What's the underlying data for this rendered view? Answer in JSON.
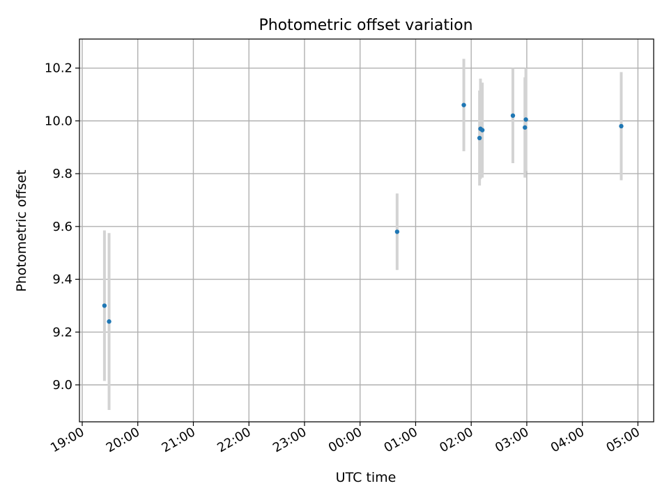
{
  "chart_data": {
    "type": "scatter",
    "title": "Photometric offset variation",
    "xlabel": "UTC time",
    "ylabel": "Photometric offset",
    "x_tick_labels": [
      "19:00",
      "20:00",
      "21:00",
      "22:00",
      "23:00",
      "00:00",
      "01:00",
      "02:00",
      "03:00",
      "04:00",
      "05:00"
    ],
    "x_ticks_time": [
      "19:00",
      "20:00",
      "21:00",
      "22:00",
      "23:00",
      "00:00",
      "01:00",
      "02:00",
      "03:00",
      "04:00",
      "05:00"
    ],
    "xlim": [
      "18:57",
      "05:17"
    ],
    "y_ticks": [
      9.0,
      9.2,
      9.4,
      9.6,
      9.8,
      10.0,
      10.2
    ],
    "y_tick_labels": [
      "9.0",
      "9.2",
      "9.4",
      "9.6",
      "9.8",
      "10.0",
      "10.2"
    ],
    "ylim": [
      8.86,
      10.31
    ],
    "grid": true,
    "legend": null,
    "colors": {
      "point": "#1f77b4",
      "errorbar": "#d3d3d3",
      "grid": "#b0b0b0",
      "axes": "#000000"
    },
    "points": [
      {
        "time": "19:24",
        "y": 9.3,
        "err": 0.285
      },
      {
        "time": "19:29",
        "y": 9.24,
        "err": 0.335
      },
      {
        "time": "00:40",
        "y": 9.58,
        "err": 0.145
      },
      {
        "time": "01:52",
        "y": 10.06,
        "err": 0.175
      },
      {
        "time": "02:09",
        "y": 9.935,
        "err": 0.18
      },
      {
        "time": "02:10",
        "y": 9.97,
        "err": 0.19
      },
      {
        "time": "02:12",
        "y": 9.965,
        "err": 0.18
      },
      {
        "time": "02:45",
        "y": 10.02,
        "err": 0.18
      },
      {
        "time": "02:58",
        "y": 9.975,
        "err": 0.19
      },
      {
        "time": "02:59",
        "y": 10.005,
        "err": 0.195
      },
      {
        "time": "04:42",
        "y": 9.98,
        "err": 0.205
      }
    ]
  }
}
